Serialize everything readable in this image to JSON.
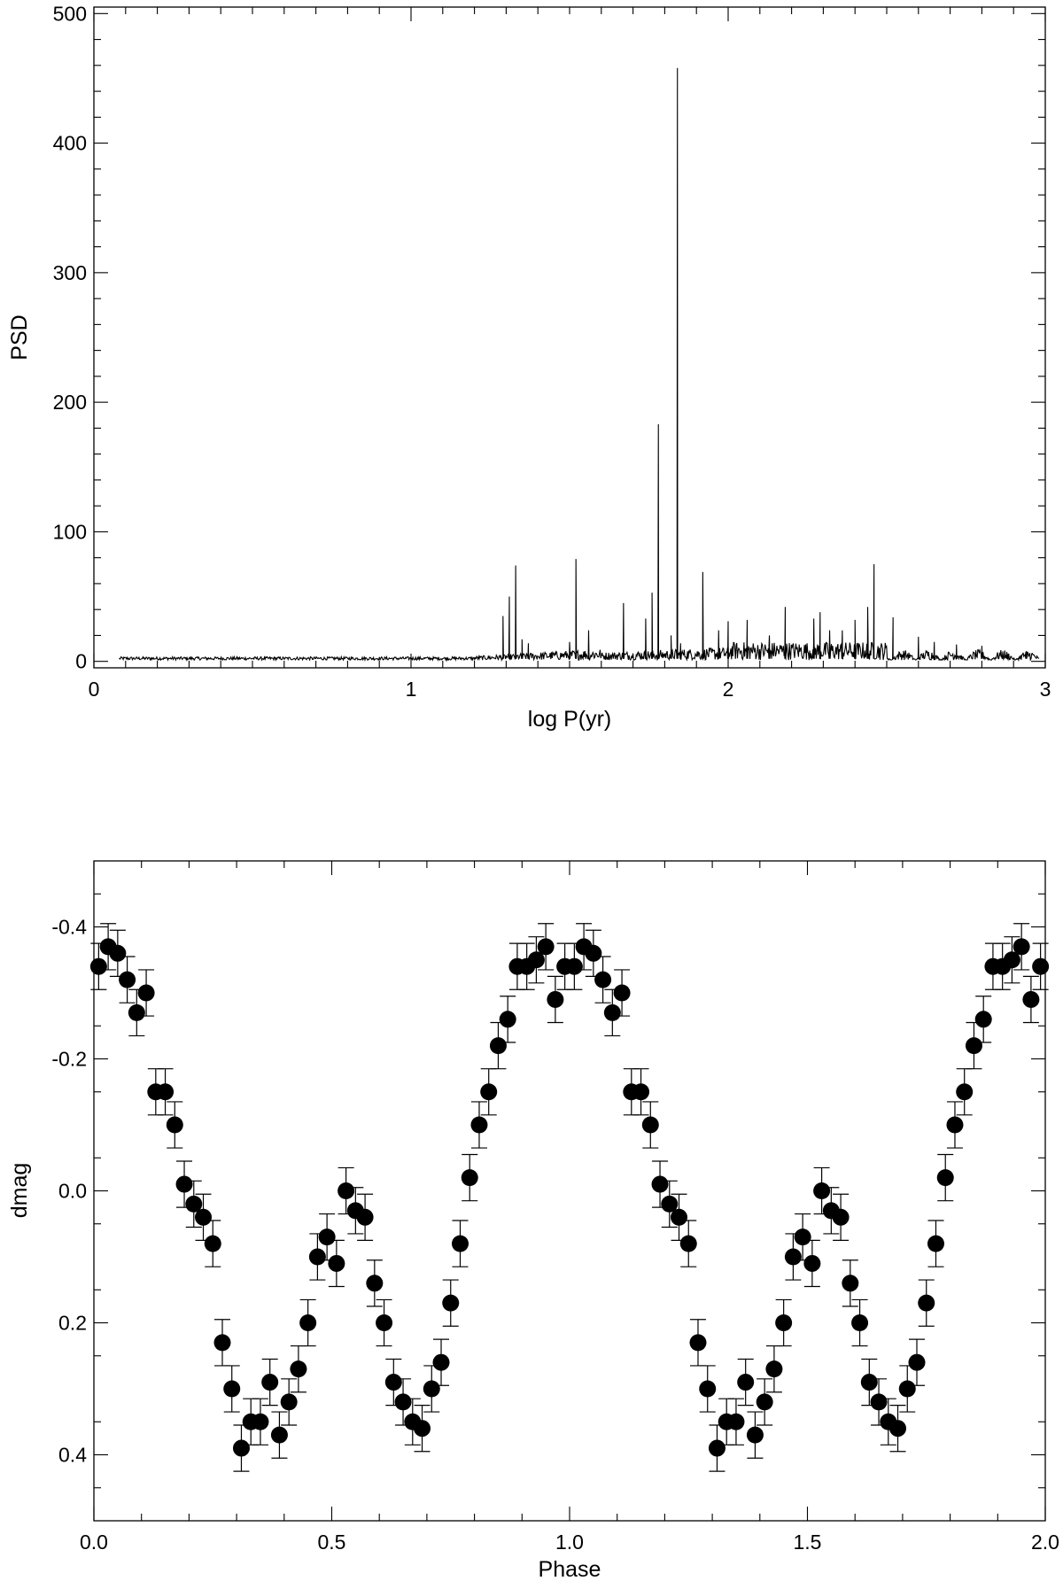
{
  "chart_data": [
    {
      "type": "line",
      "xlabel": "log P(yr)",
      "ylabel": "PSD",
      "xlim": [
        0,
        3
      ],
      "ylim": [
        -5,
        505
      ],
      "xticks": [
        0,
        1,
        2,
        3
      ],
      "xtick_labels": [
        "0",
        "1",
        "2",
        "3"
      ],
      "yticks": [
        0,
        100,
        200,
        300,
        400,
        500
      ],
      "ytick_labels": [
        "0",
        "100",
        "200",
        "300",
        "400",
        "500"
      ],
      "x_range_data": [
        0.08,
        2.98
      ],
      "peaks": [
        {
          "x": 1.29,
          "y": 35
        },
        {
          "x": 1.31,
          "y": 50
        },
        {
          "x": 1.33,
          "y": 74
        },
        {
          "x": 1.35,
          "y": 17
        },
        {
          "x": 1.37,
          "y": 14
        },
        {
          "x": 1.5,
          "y": 15
        },
        {
          "x": 1.52,
          "y": 79
        },
        {
          "x": 1.56,
          "y": 24
        },
        {
          "x": 1.67,
          "y": 45
        },
        {
          "x": 1.74,
          "y": 33
        },
        {
          "x": 1.76,
          "y": 53
        },
        {
          "x": 1.78,
          "y": 183
        },
        {
          "x": 1.82,
          "y": 20
        },
        {
          "x": 1.84,
          "y": 458
        },
        {
          "x": 1.85,
          "y": 14
        },
        {
          "x": 1.92,
          "y": 69
        },
        {
          "x": 1.97,
          "y": 24
        },
        {
          "x": 2.0,
          "y": 31
        },
        {
          "x": 2.06,
          "y": 32
        },
        {
          "x": 2.13,
          "y": 20
        },
        {
          "x": 2.18,
          "y": 42
        },
        {
          "x": 2.27,
          "y": 33
        },
        {
          "x": 2.29,
          "y": 38
        },
        {
          "x": 2.32,
          "y": 24
        },
        {
          "x": 2.36,
          "y": 24
        },
        {
          "x": 2.4,
          "y": 32
        },
        {
          "x": 2.44,
          "y": 42
        },
        {
          "x": 2.46,
          "y": 75
        },
        {
          "x": 2.52,
          "y": 34
        },
        {
          "x": 2.6,
          "y": 19
        },
        {
          "x": 2.65,
          "y": 15
        },
        {
          "x": 2.72,
          "y": 13
        },
        {
          "x": 2.8,
          "y": 12
        },
        {
          "x": 2.88,
          "y": 4
        },
        {
          "x": 2.94,
          "y": 3
        }
      ]
    },
    {
      "type": "scatter",
      "xlabel": "Phase",
      "ylabel": "dmag",
      "xlim": [
        0,
        2
      ],
      "ylim": [
        -0.5,
        0.5
      ],
      "y_inverted": true,
      "xticks": [
        0,
        0.5,
        1,
        1.5,
        2
      ],
      "xtick_labels": [
        "0.0",
        "0.5",
        "1.0",
        "1.5",
        "2.0"
      ],
      "yticks": [
        -0.4,
        -0.2,
        0,
        0.2,
        0.4
      ],
      "ytick_labels": [
        "-0.4",
        "-0.2",
        "0.0",
        "0.2",
        "0.4"
      ],
      "error": 0.035,
      "x": [
        0.01,
        0.03,
        0.05,
        0.07,
        0.09,
        0.11,
        0.13,
        0.15,
        0.17,
        0.19,
        0.21,
        0.23,
        0.25,
        0.27,
        0.29,
        0.31,
        0.33,
        0.35,
        0.37,
        0.39,
        0.41,
        0.43,
        0.45,
        0.47,
        0.49,
        0.51,
        0.53,
        0.55,
        0.57,
        0.59,
        0.61,
        0.63,
        0.65,
        0.67,
        0.69,
        0.71,
        0.73,
        0.75,
        0.77,
        0.79,
        0.81,
        0.83,
        0.85,
        0.87,
        0.89,
        0.91,
        0.93,
        0.95,
        0.97,
        0.99,
        1.01,
        1.03,
        1.05,
        1.07,
        1.09,
        1.11,
        1.13,
        1.15,
        1.17,
        1.19,
        1.21,
        1.23,
        1.25,
        1.27,
        1.29,
        1.31,
        1.33,
        1.35,
        1.37,
        1.39,
        1.41,
        1.43,
        1.45,
        1.47,
        1.49,
        1.51,
        1.53,
        1.55,
        1.57,
        1.59,
        1.61,
        1.63,
        1.65,
        1.67,
        1.69,
        1.71,
        1.73,
        1.75,
        1.77,
        1.79,
        1.81,
        1.83,
        1.85,
        1.87,
        1.89,
        1.91,
        1.93,
        1.95,
        1.97,
        1.99
      ],
      "y": [
        -0.34,
        -0.37,
        -0.36,
        -0.32,
        -0.27,
        -0.3,
        -0.15,
        -0.15,
        -0.1,
        -0.01,
        0.02,
        0.04,
        0.08,
        0.23,
        0.3,
        0.39,
        0.35,
        0.35,
        0.29,
        0.37,
        0.32,
        0.27,
        0.2,
        0.1,
        0.07,
        0.11,
        0.0,
        0.03,
        0.04,
        0.14,
        0.2,
        0.29,
        0.32,
        0.35,
        0.36,
        0.3,
        0.26,
        0.17,
        0.08,
        -0.02,
        -0.1,
        -0.15,
        -0.22,
        -0.26,
        -0.34,
        -0.34,
        -0.35,
        -0.37,
        -0.29,
        -0.34,
        -0.34,
        -0.37,
        -0.36,
        -0.32,
        -0.27,
        -0.3,
        -0.15,
        -0.15,
        -0.1,
        -0.01,
        0.02,
        0.04,
        0.08,
        0.23,
        0.3,
        0.39,
        0.35,
        0.35,
        0.29,
        0.37,
        0.32,
        0.27,
        0.2,
        0.1,
        0.07,
        0.11,
        0.0,
        0.03,
        0.04,
        0.14,
        0.2,
        0.29,
        0.32,
        0.35,
        0.36,
        0.3,
        0.26,
        0.17,
        0.08,
        -0.02,
        -0.1,
        -0.15,
        -0.22,
        -0.26,
        -0.34,
        -0.34,
        -0.35,
        -0.37,
        -0.29,
        -0.34
      ]
    }
  ]
}
